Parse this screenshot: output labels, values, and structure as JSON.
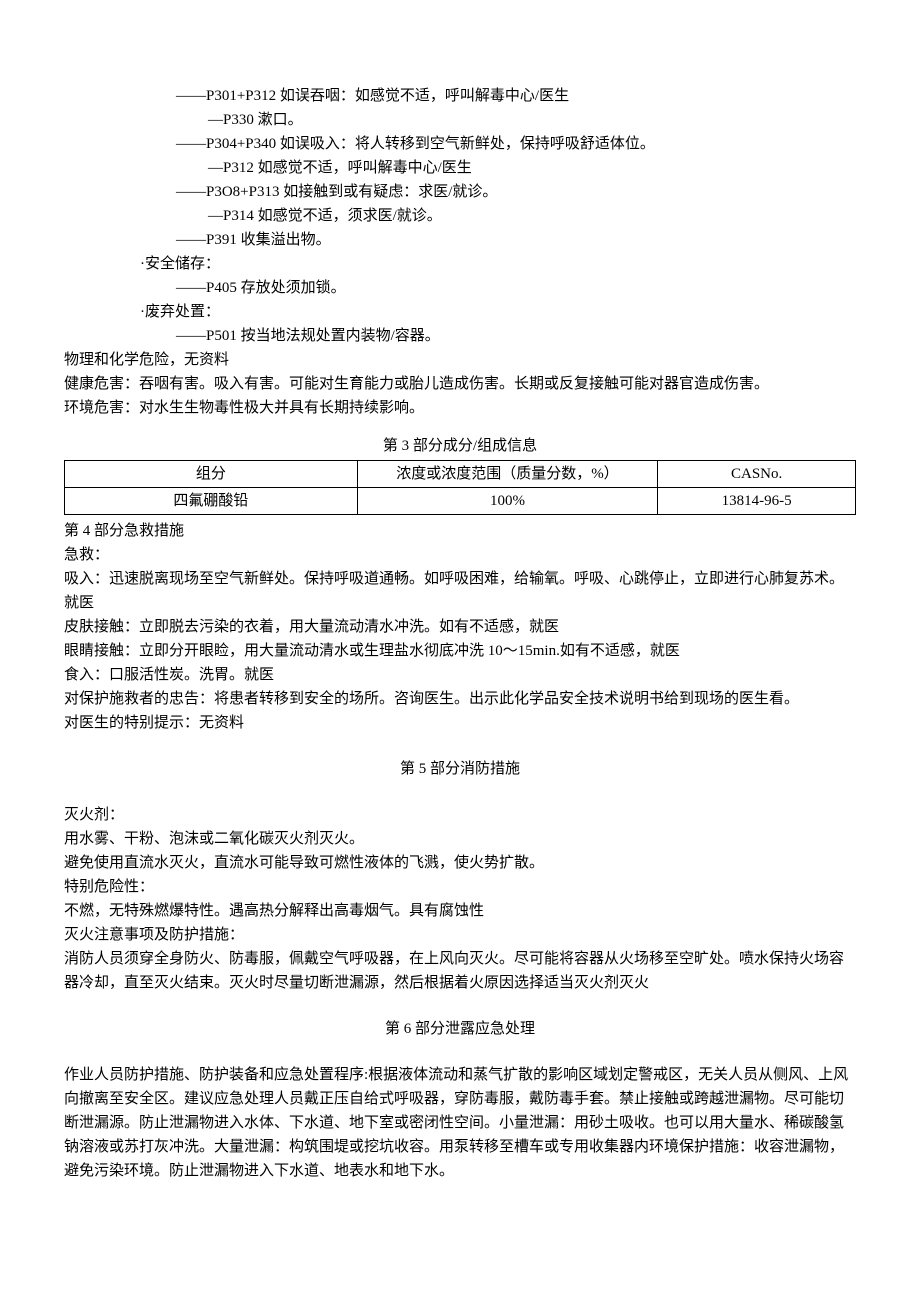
{
  "precautions": {
    "p301": "——P301+P312 如误吞咽：如感觉不适，呼叫解毒中心/医生",
    "p330": "—P330 漱口。",
    "p304": "——P304+P340 如误吸入：将人转移到空气新鲜处，保持呼吸舒适体位。",
    "p312": "—P312 如感觉不适，呼叫解毒中心/医生",
    "p308": "——P3O8+P313 如接触到或有疑虑：求医/就诊。",
    "p314": "—P314 如感觉不适，须求医/就诊。",
    "p391": "——P391 收集溢出物。",
    "storage_label": "·安全储存：",
    "p405": "——P405 存放处须加锁。",
    "disposal_label": "·废弃处置：",
    "p501": "——P501 按当地法规处置内装物/容器。"
  },
  "hazards": {
    "physical": "物理和化学危险，无资料",
    "health": "健康危害：吞咽有害。吸入有害。可能对生育能力或胎儿造成伤害。长期或反复接触可能对器官造成伤害。",
    "env": "环境危害：对水生生物毒性极大并具有长期持续影响。"
  },
  "section3": {
    "title": "第 3 部分成分/组成信息",
    "table": {
      "headers": [
        "组分",
        "浓度或浓度范围（质量分数，%）",
        "CASNo."
      ],
      "row": [
        "四氟硼酸铅",
        "100%",
        "13814-96-5"
      ]
    }
  },
  "section4": {
    "title": "第 4 部分急救措施",
    "lines": [
      "急救：",
      "吸入：迅速脱离现场至空气新鲜处。保持呼吸道通畅。如呼吸困难，给输氧。呼吸、心跳停止，立即进行心肺复苏术。就医",
      "皮肤接触：立即脱去污染的衣着，用大量流动清水冲洗。如有不适感，就医",
      "眼睛接触：立即分开眼睑，用大量流动清水或生理盐水彻底冲洗 10～15min.如有不适感，就医",
      "食入：口服活性炭。洗胃。就医",
      "对保护施救者的忠告：将患者转移到安全的场所。咨询医生。出示此化学品安全技术说明书给到现场的医生看。",
      "对医生的特别提示：无资料"
    ]
  },
  "section5": {
    "title": "第 5 部分消防措施",
    "lines": [
      "灭火剂：",
      "用水雾、干粉、泡沫或二氧化碳灭火剂灭火。",
      "避免使用直流水灭火，直流水可能导致可燃性液体的飞溅，使火势扩散。",
      "特别危险性：",
      "不燃，无特殊燃爆特性。遇高热分解释出高毒烟气。具有腐蚀性",
      "灭火注意事项及防护措施：",
      "消防人员须穿全身防火、防毒服，佩戴空气呼吸器，在上风向灭火。尽可能将容器从火场移至空旷处。喷水保持火场容器冷却，直至灭火结束。灭火时尽量切断泄漏源，然后根据着火原因选择适当灭火剂灭火"
    ]
  },
  "section6": {
    "title": "第 6 部分泄露应急处理",
    "lines": [
      "作业人员防护措施、防护装备和应急处置程序:根据液体流动和蒸气扩散的影响区域划定警戒区，无关人员从侧风、上风向撤离至安全区。建议应急处理人员戴正压自给式呼吸器，穿防毒服，戴防毒手套。禁止接触或跨越泄漏物。尽可能切断泄漏源。防止泄漏物进入水体、下水道、地下室或密闭性空间。小量泄漏：用砂土吸收。也可以用大量水、稀碳酸氢钠溶液或苏打灰冲洗。大量泄漏：构筑围堤或挖坑收容。用泵转移至槽车或专用收集器内环境保护措施：收容泄漏物，避免污染环境。防止泄漏物进入下水道、地表水和地下水。"
    ]
  }
}
